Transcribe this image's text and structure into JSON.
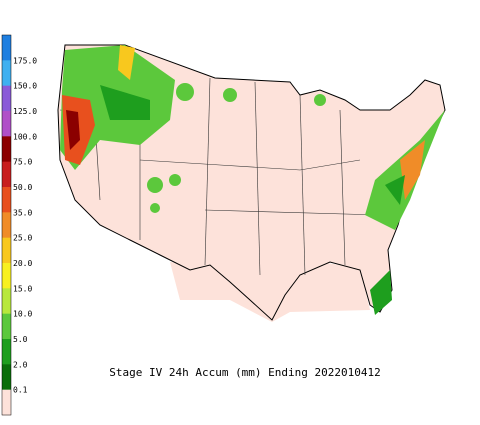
{
  "title": "Stage IV 24h Accum (mm) Ending 2022010412",
  "legend": {
    "labels": [
      "175.0",
      "150.0",
      "125.0",
      "100.0",
      "75.0",
      "50.0",
      "35.0",
      "25.0",
      "20.0",
      "15.0",
      "10.0",
      "5.0",
      "2.0",
      "0.1"
    ],
    "colors": [
      "#1f7fe0",
      "#3fb0f0",
      "#8a5ad8",
      "#b050c8",
      "#8b0000",
      "#c81e1e",
      "#e8501e",
      "#f08c28",
      "#f8c81e",
      "#f8f020",
      "#b8e83c",
      "#5cc83c",
      "#1e9e1e",
      "#0a6e0a",
      "#fde2da"
    ]
  }
}
